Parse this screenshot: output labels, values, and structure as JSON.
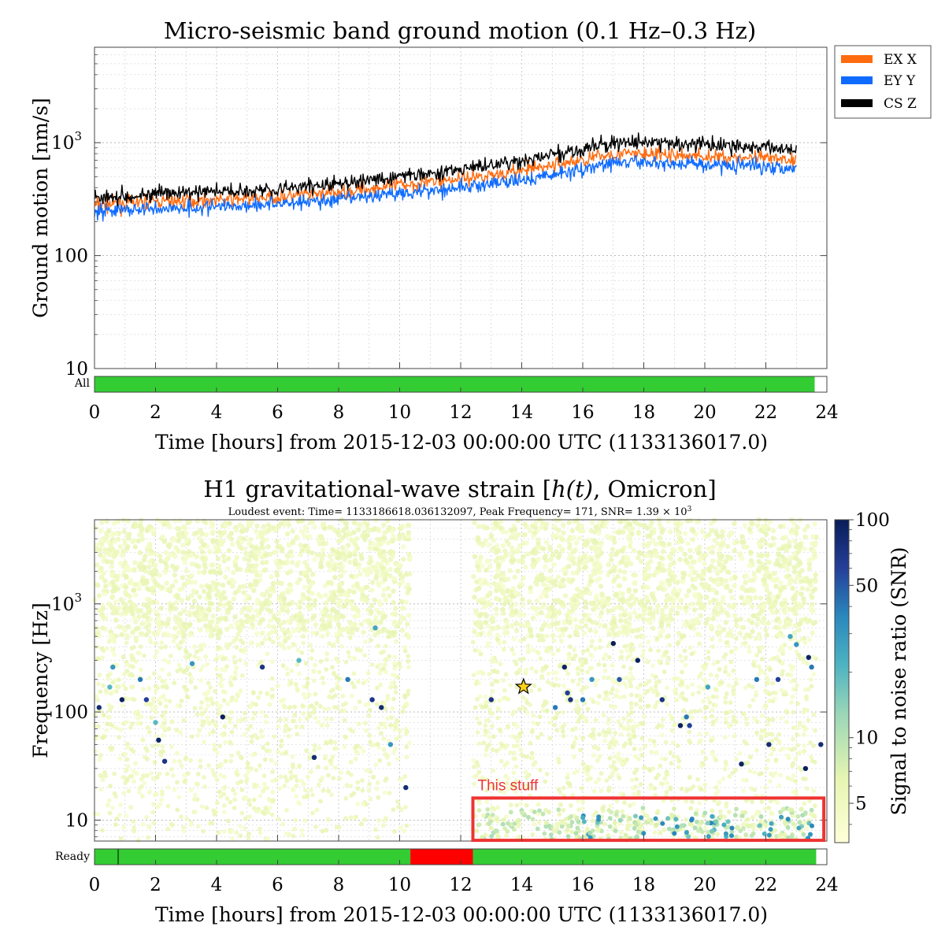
{
  "colors": {
    "ex_x": "#ff6b0f",
    "ey_y": "#0f6bff",
    "cs_z": "#000000",
    "segment_on": "#33cc33",
    "segment_off": "#ff0000",
    "annotation": "#ee3333",
    "star": "#ffd21a"
  },
  "chart_data": [
    {
      "type": "line",
      "title": "Micro-seismic band ground motion (0.1 Hz–0.3 Hz)",
      "xlabel": "Time [hours] from 2015-12-03 00:00:00 UTC (1133136017.0)",
      "ylabel": "Ground motion [nm/s]",
      "xlim": [
        0,
        24
      ],
      "ylim": [
        10,
        7000
      ],
      "yscale": "log",
      "grid": true,
      "legend_position": "outside-top-right",
      "x_ticks": [
        "0",
        "2",
        "4",
        "6",
        "8",
        "10",
        "12",
        "14",
        "16",
        "18",
        "20",
        "22",
        "24"
      ],
      "y_ticks": [
        {
          "value": 10,
          "label": "10"
        },
        {
          "value": 100,
          "label": "100"
        },
        {
          "value": 1000,
          "label": "10",
          "sup": "3"
        }
      ],
      "series": [
        {
          "name": "EX X",
          "color_key": "ex_x",
          "x": [
            0,
            2,
            4,
            6,
            8,
            10,
            12,
            14,
            16,
            17,
            18,
            20,
            22,
            23
          ],
          "values": [
            280,
            300,
            310,
            330,
            360,
            420,
            480,
            560,
            700,
            800,
            790,
            760,
            720,
            700
          ]
        },
        {
          "name": "EY Y",
          "color_key": "ey_y",
          "x": [
            0,
            2,
            4,
            6,
            8,
            10,
            12,
            14,
            16,
            17,
            18,
            20,
            22,
            23
          ],
          "values": [
            250,
            260,
            270,
            290,
            310,
            360,
            400,
            460,
            580,
            660,
            670,
            640,
            620,
            600
          ]
        },
        {
          "name": "CS Z",
          "color_key": "cs_z",
          "x": [
            0,
            2,
            4,
            6,
            8,
            10,
            12,
            14,
            16,
            17,
            18,
            20,
            22,
            23
          ],
          "values": [
            330,
            350,
            370,
            390,
            430,
            500,
            580,
            680,
            870,
            1000,
            1000,
            960,
            900,
            880
          ]
        }
      ],
      "segments": {
        "label": "All",
        "on": [
          [
            0,
            23.6
          ]
        ]
      }
    },
    {
      "type": "scatter",
      "title_prefix": "H1 gravitational-wave strain [",
      "title_math": "h(t)",
      "title_suffix": ", Omicron]",
      "subtitle_prefix": "Loudest event: Time= 1133186618.036132097, Peak Frequency= 171, SNR= 1.39 × 10",
      "subtitle_sup": "3",
      "xlabel": "Time [hours] from 2015-12-03 00:00:00 UTC (1133136017.0)",
      "ylabel": "Frequency [Hz]",
      "xlim": [
        0,
        24
      ],
      "ylim": [
        6.4,
        6000
      ],
      "yscale": "log",
      "grid": true,
      "x_ticks": [
        "0",
        "2",
        "4",
        "6",
        "8",
        "10",
        "12",
        "14",
        "16",
        "18",
        "20",
        "22",
        "24"
      ],
      "y_ticks": [
        {
          "value": 10,
          "label": "10"
        },
        {
          "value": 100,
          "label": "100"
        },
        {
          "value": 1000,
          "label": "10",
          "sup": "3"
        }
      ],
      "colorbar": {
        "label": "Signal to noise ratio (SNR)",
        "range": [
          3.3,
          100
        ],
        "scale": "log",
        "ticks": [
          {
            "value": 100,
            "label": "100"
          },
          {
            "value": 50,
            "label": "50"
          },
          {
            "value": 10,
            "label": "10"
          },
          {
            "value": 5,
            "label": "5"
          }
        ]
      },
      "data_windows": [
        [
          0,
          10.35
        ],
        [
          12.4,
          21.05
        ],
        [
          21.15,
          23.65
        ]
      ],
      "loud_events": [
        {
          "x": 0.15,
          "y": 110,
          "snr": 80
        },
        {
          "x": 0.6,
          "y": 260,
          "snr": 30
        },
        {
          "x": 0.9,
          "y": 130,
          "snr": 95
        },
        {
          "x": 1.5,
          "y": 200,
          "snr": 40
        },
        {
          "x": 1.7,
          "y": 130,
          "snr": 60
        },
        {
          "x": 2.1,
          "y": 55,
          "snr": 90
        },
        {
          "x": 2.3,
          "y": 35,
          "snr": 70
        },
        {
          "x": 3.2,
          "y": 280,
          "snr": 30
        },
        {
          "x": 4.2,
          "y": 90,
          "snr": 95
        },
        {
          "x": 5.5,
          "y": 260,
          "snr": 70
        },
        {
          "x": 7.2,
          "y": 38,
          "snr": 80
        },
        {
          "x": 8.3,
          "y": 200,
          "snr": 40
        },
        {
          "x": 9.1,
          "y": 130,
          "snr": 70
        },
        {
          "x": 9.4,
          "y": 110,
          "snr": 80
        },
        {
          "x": 9.7,
          "y": 50,
          "snr": 30
        },
        {
          "x": 10.2,
          "y": 20,
          "snr": 80
        },
        {
          "x": 13.0,
          "y": 130,
          "snr": 70
        },
        {
          "x": 15.1,
          "y": 110,
          "snr": 40
        },
        {
          "x": 15.4,
          "y": 260,
          "snr": 90
        },
        {
          "x": 15.5,
          "y": 150,
          "snr": 60
        },
        {
          "x": 15.6,
          "y": 130,
          "snr": 70
        },
        {
          "x": 16.0,
          "y": 130,
          "snr": 40
        },
        {
          "x": 16.3,
          "y": 200,
          "snr": 30
        },
        {
          "x": 17.0,
          "y": 430,
          "snr": 95
        },
        {
          "x": 17.2,
          "y": 200,
          "snr": 50
        },
        {
          "x": 17.8,
          "y": 300,
          "snr": 95
        },
        {
          "x": 18.6,
          "y": 130,
          "snr": 70
        },
        {
          "x": 19.2,
          "y": 75,
          "snr": 95
        },
        {
          "x": 19.4,
          "y": 90,
          "snr": 40
        },
        {
          "x": 19.5,
          "y": 75,
          "snr": 60
        },
        {
          "x": 21.2,
          "y": 33,
          "snr": 90
        },
        {
          "x": 21.7,
          "y": 200,
          "snr": 40
        },
        {
          "x": 22.1,
          "y": 50,
          "snr": 80
        },
        {
          "x": 22.4,
          "y": 200,
          "snr": 60
        },
        {
          "x": 23.0,
          "y": 420,
          "snr": 30
        },
        {
          "x": 23.3,
          "y": 30,
          "snr": 95
        },
        {
          "x": 23.4,
          "y": 320,
          "snr": 90
        },
        {
          "x": 23.5,
          "y": 260,
          "snr": 40
        },
        {
          "x": 23.8,
          "y": 50,
          "snr": 80
        },
        {
          "x": 0.5,
          "y": 170,
          "snr": 20
        },
        {
          "x": 2.0,
          "y": 80,
          "snr": 20
        },
        {
          "x": 6.7,
          "y": 300,
          "snr": 20
        },
        {
          "x": 9.2,
          "y": 600,
          "snr": 25
        },
        {
          "x": 20.1,
          "y": 170,
          "snr": 25
        },
        {
          "x": 22.8,
          "y": 500,
          "snr": 25
        }
      ],
      "loudest_event": {
        "x": 14.06,
        "y": 171,
        "snr": 1390
      },
      "annotation": {
        "text": "This stuff",
        "x_range": [
          12.4,
          23.9
        ],
        "y_range": [
          6.5,
          16
        ]
      },
      "segments": {
        "label": "Ready",
        "on": [
          [
            0,
            10.35
          ],
          [
            12.4,
            23.65
          ]
        ],
        "off": [
          [
            10.35,
            12.4
          ]
        ]
      }
    }
  ]
}
